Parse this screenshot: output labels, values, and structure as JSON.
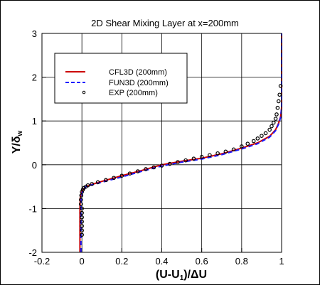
{
  "chart_data": {
    "type": "line",
    "title": "2D Shear Mixing Layer at x=200mm",
    "xlabel": "(U-U1)/ΔU",
    "ylabel": "Y/δw",
    "xlim": [
      -0.2,
      1.0
    ],
    "ylim": [
      -2,
      3
    ],
    "xticks": [
      "-0.2",
      "0",
      "0.2",
      "0.4",
      "0.6",
      "0.8",
      "1"
    ],
    "yticks": [
      "-2",
      "-1",
      "0",
      "1",
      "2",
      "3"
    ],
    "grid": true,
    "legend_position": "top-left",
    "series": [
      {
        "name": "CFL3D (200mm)",
        "style": "solid-line",
        "color": "#cc0000",
        "x": [
          -0.01,
          -0.01,
          -0.01,
          -0.008,
          0.0,
          0.02,
          0.05,
          0.1,
          0.2,
          0.3,
          0.4,
          0.5,
          0.6,
          0.7,
          0.8,
          0.88,
          0.94,
          0.97,
          0.985,
          0.995,
          1.0,
          1.0,
          1.0
        ],
        "y": [
          -2.0,
          -1.5,
          -1.0,
          -0.75,
          -0.6,
          -0.5,
          -0.45,
          -0.38,
          -0.25,
          -0.13,
          0.0,
          0.08,
          0.15,
          0.25,
          0.38,
          0.5,
          0.65,
          0.8,
          0.95,
          1.1,
          1.3,
          2.0,
          3.0
        ]
      },
      {
        "name": "FUN3D (200mm)",
        "style": "dashed-line",
        "color": "#1a1aff",
        "x": [
          -0.005,
          -0.005,
          -0.005,
          -0.003,
          0.003,
          0.02,
          0.05,
          0.1,
          0.2,
          0.3,
          0.4,
          0.5,
          0.6,
          0.7,
          0.8,
          0.88,
          0.94,
          0.97,
          0.985,
          0.995,
          1.0,
          1.0,
          1.0
        ],
        "y": [
          -2.0,
          -1.5,
          -1.0,
          -0.75,
          -0.6,
          -0.5,
          -0.46,
          -0.4,
          -0.28,
          -0.15,
          -0.03,
          0.06,
          0.13,
          0.23,
          0.36,
          0.48,
          0.63,
          0.78,
          0.93,
          1.08,
          1.3,
          2.0,
          3.0
        ]
      },
      {
        "name": "EXP (200mm)",
        "style": "markers",
        "color": "#000000",
        "x": [
          0.0,
          0.0,
          0.0,
          0.0,
          0.0,
          0.0,
          0.0,
          -0.005,
          -0.005,
          -0.003,
          0.0,
          0.005,
          0.01,
          0.02,
          0.03,
          0.05,
          0.08,
          0.12,
          0.16,
          0.2,
          0.24,
          0.28,
          0.32,
          0.36,
          0.4,
          0.44,
          0.48,
          0.52,
          0.56,
          0.6,
          0.64,
          0.68,
          0.72,
          0.76,
          0.8,
          0.83,
          0.86,
          0.88,
          0.9,
          0.92,
          0.94,
          0.95,
          0.96,
          0.97,
          0.975,
          0.98,
          0.985,
          0.99,
          0.995
        ],
        "y": [
          -1.6,
          -1.5,
          -1.4,
          -1.3,
          -1.2,
          -1.1,
          -1.0,
          -0.9,
          -0.8,
          -0.7,
          -0.62,
          -0.57,
          -0.53,
          -0.5,
          -0.47,
          -0.44,
          -0.4,
          -0.35,
          -0.3,
          -0.25,
          -0.2,
          -0.15,
          -0.1,
          -0.06,
          -0.02,
          0.02,
          0.06,
          0.1,
          0.14,
          0.18,
          0.22,
          0.26,
          0.3,
          0.35,
          0.42,
          0.48,
          0.54,
          0.6,
          0.66,
          0.72,
          0.8,
          0.88,
          0.96,
          1.05,
          1.15,
          1.3,
          1.45,
          1.6,
          1.8
        ]
      }
    ]
  }
}
